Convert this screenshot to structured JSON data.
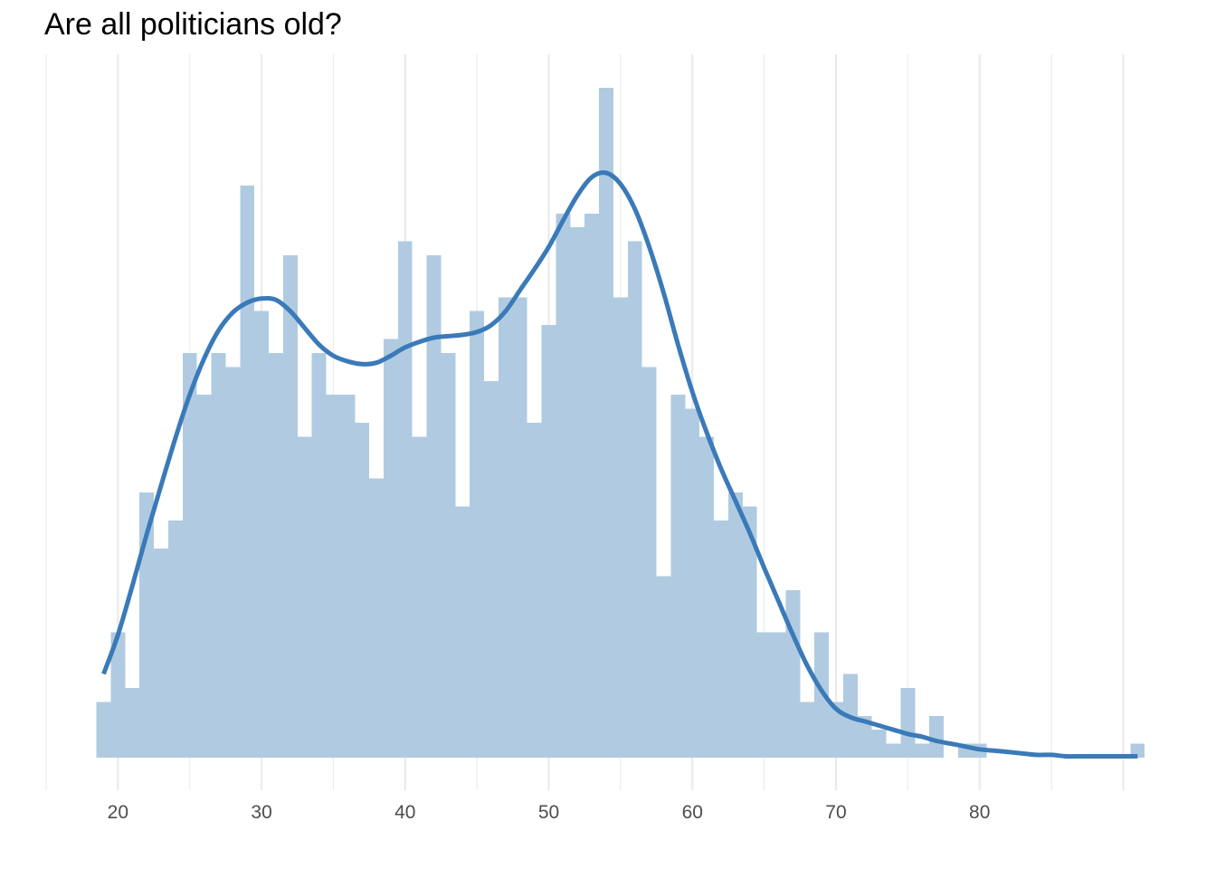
{
  "chart_data": {
    "type": "bar",
    "title": "Are all politicians old?",
    "xlabel": "",
    "ylabel": "",
    "xlim": [
      15,
      91.8
    ],
    "ylim": [
      0,
      48
    ],
    "x_ticks": [
      20,
      30,
      40,
      50,
      60,
      70,
      80
    ],
    "x_tick_labels": [
      "20",
      "30",
      "40",
      "50",
      "60",
      "70",
      "80"
    ],
    "grid": {
      "vertical_major": true,
      "vertical_minor": true,
      "horizontal": false
    },
    "bin_width": 1,
    "bins_start": [
      18.5,
      19.5,
      20.5,
      21.5,
      22.5,
      23.5,
      24.5,
      25.5,
      26.5,
      27.5,
      28.5,
      29.5,
      30.5,
      31.5,
      32.5,
      33.5,
      34.5,
      35.5,
      36.5,
      37.5,
      38.5,
      39.5,
      40.5,
      41.5,
      42.5,
      43.5,
      44.5,
      45.5,
      46.5,
      47.5,
      48.5,
      49.5,
      50.5,
      51.5,
      52.5,
      53.5,
      54.5,
      55.5,
      56.5,
      57.5,
      58.5,
      59.5,
      60.5,
      61.5,
      62.5,
      63.5,
      64.5,
      65.5,
      66.5,
      67.5,
      68.5,
      69.5,
      70.5,
      71.5,
      72.5,
      73.5,
      74.5,
      75.5,
      76.5,
      77.5,
      78.5,
      79.5,
      80.5,
      81.5,
      82.5,
      83.5,
      84.5,
      85.5,
      86.5,
      87.5,
      88.5,
      89.5,
      90.5
    ],
    "counts": [
      4,
      9,
      5,
      19,
      15,
      17,
      29,
      26,
      29,
      28,
      41,
      32,
      29,
      36,
      23,
      29,
      26,
      26,
      24,
      20,
      30,
      37,
      23,
      36,
      29,
      18,
      32,
      27,
      33,
      33,
      24,
      31,
      39,
      38,
      39,
      48,
      33,
      37,
      28,
      13,
      26,
      25,
      23,
      17,
      19,
      18,
      9,
      9,
      12,
      4,
      9,
      4,
      6,
      3,
      2,
      1,
      5,
      1,
      3,
      0,
      1,
      1,
      0,
      0,
      0,
      0,
      0,
      0,
      0,
      0,
      0,
      0,
      1
    ],
    "bar_color": "#b0cbe1",
    "density_color": "#3a7ab8",
    "density_curve": {
      "x": [
        19,
        20,
        21,
        22,
        23,
        24,
        25,
        26,
        27,
        28,
        29,
        30,
        31,
        32,
        33,
        34,
        35,
        36,
        37,
        38,
        39,
        40,
        41,
        42,
        43,
        44,
        45,
        46,
        47,
        48,
        49,
        50,
        51,
        52,
        53,
        54,
        55,
        56,
        57,
        58,
        59,
        60,
        61,
        62,
        63,
        64,
        65,
        66,
        67,
        68,
        69,
        70,
        71,
        72,
        73,
        74,
        75,
        76,
        77,
        78,
        79,
        80,
        81,
        82,
        83,
        84,
        85,
        86,
        87,
        88,
        89,
        90,
        91
      ],
      "y": [
        6.0,
        8.8,
        12.3,
        16.0,
        19.5,
        22.9,
        26.0,
        28.6,
        30.6,
        31.9,
        32.6,
        32.9,
        32.8,
        32.0,
        30.8,
        29.6,
        28.8,
        28.4,
        28.2,
        28.3,
        28.8,
        29.4,
        29.8,
        30.1,
        30.2,
        30.3,
        30.5,
        31.0,
        32.0,
        33.5,
        35.0,
        36.6,
        38.5,
        40.3,
        41.6,
        41.9,
        41.1,
        39.3,
        36.6,
        33.3,
        29.6,
        26.2,
        23.3,
        20.7,
        18.4,
        16.1,
        13.6,
        11.2,
        8.8,
        6.6,
        4.8,
        3.5,
        2.9,
        2.6,
        2.3,
        2.0,
        1.7,
        1.5,
        1.2,
        1.0,
        0.8,
        0.6,
        0.5,
        0.4,
        0.3,
        0.2,
        0.2,
        0.1,
        0.1,
        0.1,
        0.1,
        0.1,
        0.1
      ]
    }
  }
}
